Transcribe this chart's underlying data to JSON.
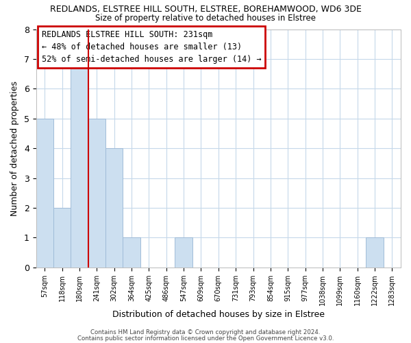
{
  "title": "REDLANDS, ELSTREE HILL SOUTH, ELSTREE, BOREHAMWOOD, WD6 3DE",
  "subtitle": "Size of property relative to detached houses in Elstree",
  "xlabel": "Distribution of detached houses by size in Elstree",
  "ylabel": "Number of detached properties",
  "bar_labels": [
    "57sqm",
    "118sqm",
    "180sqm",
    "241sqm",
    "302sqm",
    "364sqm",
    "425sqm",
    "486sqm",
    "547sqm",
    "609sqm",
    "670sqm",
    "731sqm",
    "793sqm",
    "854sqm",
    "915sqm",
    "977sqm",
    "1038sqm",
    "1099sqm",
    "1160sqm",
    "1222sqm",
    "1283sqm"
  ],
  "bar_values": [
    5,
    2,
    7,
    5,
    4,
    1,
    0,
    0,
    1,
    0,
    0,
    0,
    0,
    0,
    0,
    0,
    0,
    0,
    0,
    1,
    0
  ],
  "bar_color": "#ccdff0",
  "bar_edge_color": "#a0bcd8",
  "ylim": [
    0,
    8
  ],
  "yticks": [
    0,
    1,
    2,
    3,
    4,
    5,
    6,
    7,
    8
  ],
  "annotation_title": "REDLANDS ELSTREE HILL SOUTH: 231sqm",
  "annotation_line1": "← 48% of detached houses are smaller (13)",
  "annotation_line2": "52% of semi-detached houses are larger (14) →",
  "footer1": "Contains HM Land Registry data © Crown copyright and database right 2024.",
  "footer2": "Contains public sector information licensed under the Open Government Licence v3.0.",
  "bg_color": "#ffffff",
  "plot_bg_color": "#ffffff",
  "grid_color": "#c5d8ea"
}
